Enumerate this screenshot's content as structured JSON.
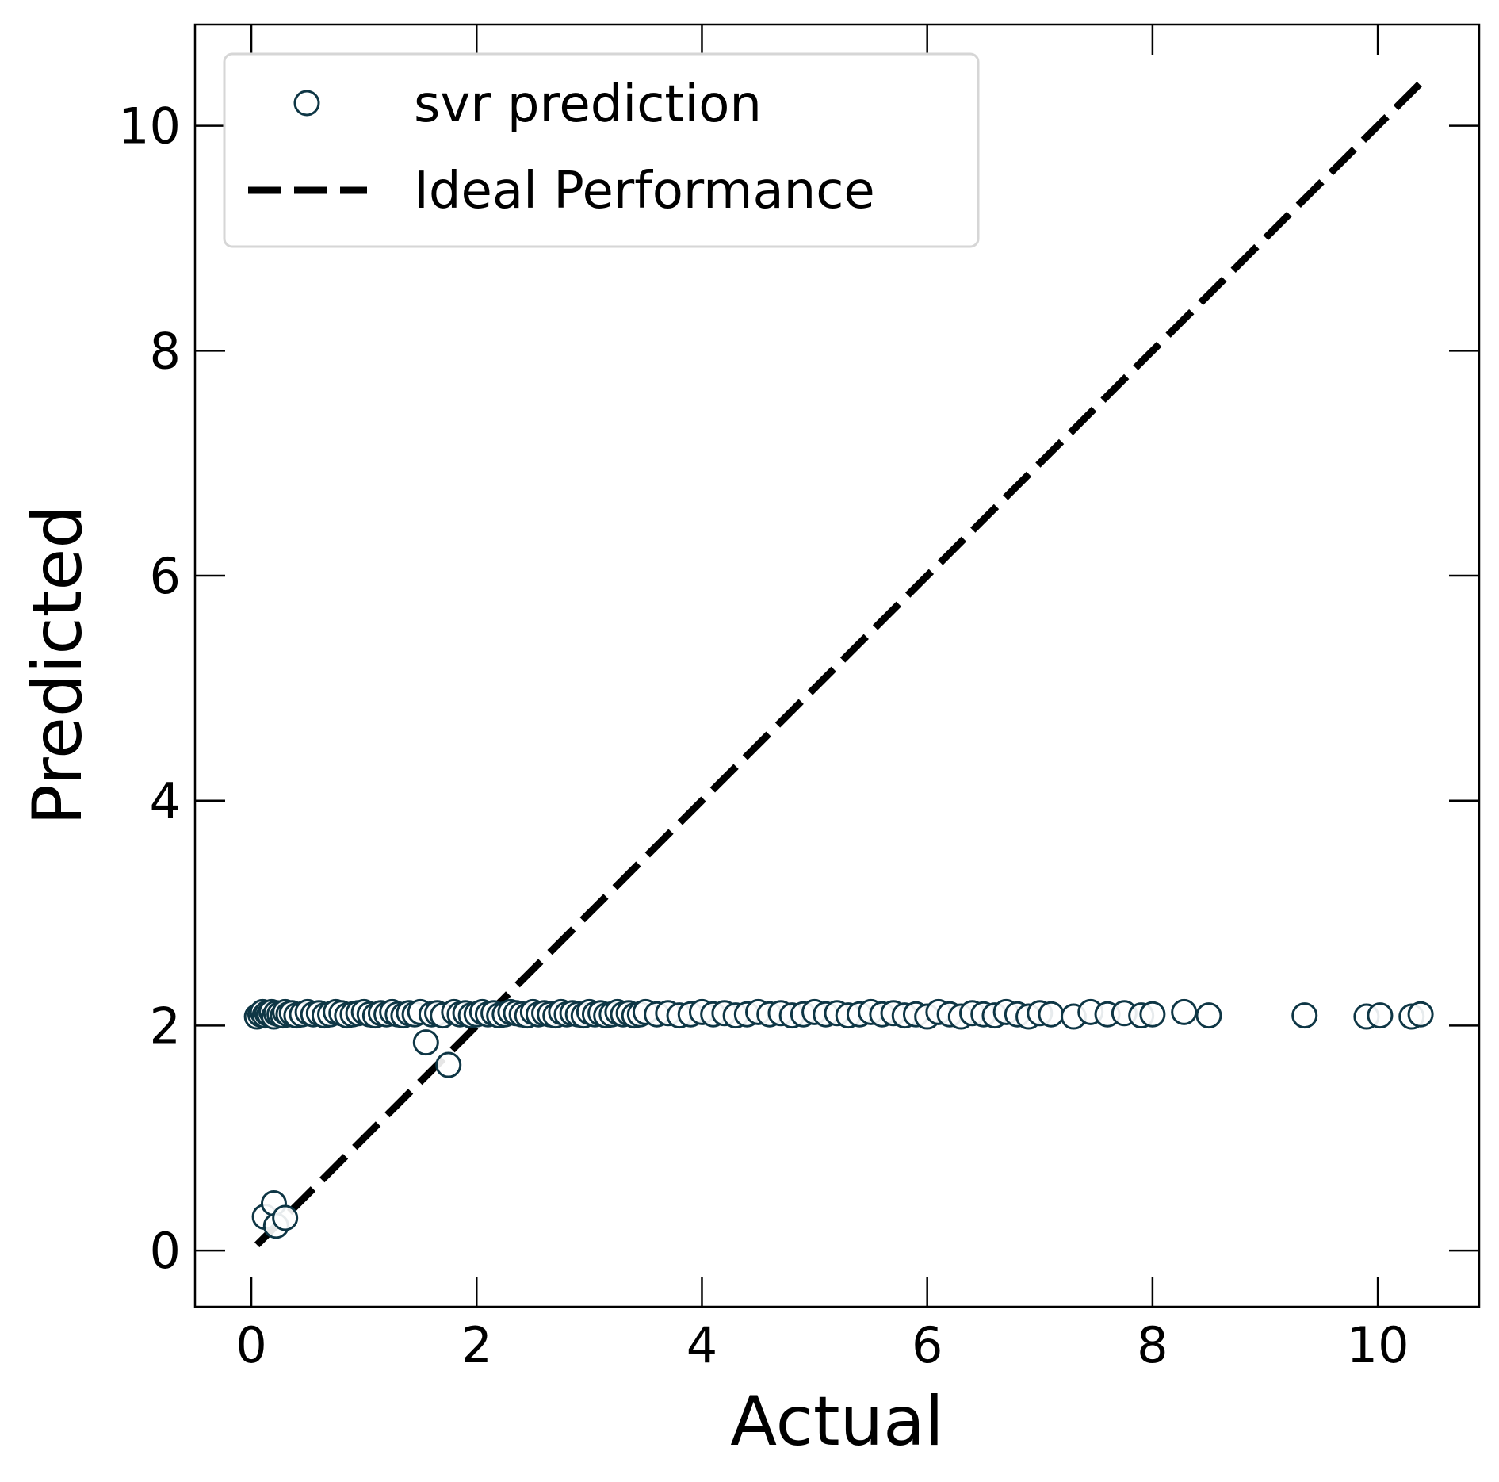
{
  "chart_data": {
    "type": "scatter",
    "xlabel": "Actual",
    "ylabel": "Predicted",
    "xlim": [
      -0.5,
      10.9
    ],
    "ylim": [
      -0.5,
      10.9
    ],
    "xticks": [
      "0",
      "2",
      "4",
      "6",
      "8",
      "10"
    ],
    "yticks": [
      "0",
      "2",
      "4",
      "6",
      "8",
      "10"
    ],
    "grid": false,
    "legend_position": "top-left",
    "colors": {
      "marker_edge": "#0e3645",
      "ideal_line": "#000000"
    },
    "series": [
      {
        "name": "svr prediction",
        "marker": "open-circle",
        "x": [
          0.05,
          0.08,
          0.1,
          0.12,
          0.14,
          0.16,
          0.18,
          0.2,
          0.22,
          0.25,
          0.28,
          0.3,
          0.33,
          0.36,
          0.4,
          0.45,
          0.5,
          0.55,
          0.6,
          0.65,
          0.7,
          0.75,
          0.8,
          0.85,
          0.9,
          0.95,
          1.0,
          1.05,
          1.1,
          1.15,
          1.2,
          1.25,
          1.3,
          1.35,
          1.4,
          1.45,
          1.5,
          1.6,
          1.65,
          1.7,
          1.8,
          1.85,
          1.9,
          1.95,
          2.0,
          2.05,
          2.1,
          2.15,
          2.2,
          2.25,
          2.3,
          2.35,
          2.4,
          2.45,
          2.5,
          2.55,
          2.6,
          2.65,
          2.7,
          2.75,
          2.8,
          2.85,
          2.9,
          2.95,
          3.0,
          3.05,
          3.1,
          3.15,
          3.2,
          3.25,
          3.3,
          3.35,
          3.4,
          3.45,
          3.5,
          3.6,
          3.7,
          3.8,
          3.9,
          4.0,
          4.1,
          4.2,
          4.3,
          4.4,
          4.5,
          4.6,
          4.7,
          4.8,
          4.9,
          5.0,
          5.1,
          5.2,
          5.3,
          5.4,
          5.5,
          5.6,
          5.7,
          5.8,
          5.9,
          6.0,
          6.1,
          6.2,
          6.3,
          6.4,
          6.5,
          6.6,
          6.7,
          6.8,
          6.9,
          7.0,
          7.1,
          7.3,
          7.45,
          7.6,
          7.75,
          7.9,
          8.0,
          8.28,
          8.5,
          9.35,
          9.9,
          10.02,
          10.3,
          10.38,
          0.12,
          0.2,
          0.22,
          0.3,
          1.55,
          1.75
        ],
        "y": [
          2.08,
          2.1,
          2.12,
          2.09,
          2.11,
          2.1,
          2.12,
          2.08,
          2.11,
          2.1,
          2.09,
          2.12,
          2.1,
          2.11,
          2.09,
          2.1,
          2.12,
          2.1,
          2.11,
          2.09,
          2.1,
          2.12,
          2.11,
          2.09,
          2.1,
          2.11,
          2.12,
          2.1,
          2.09,
          2.11,
          2.1,
          2.12,
          2.1,
          2.09,
          2.11,
          2.1,
          2.12,
          2.1,
          2.11,
          2.09,
          2.12,
          2.1,
          2.11,
          2.09,
          2.1,
          2.12,
          2.1,
          2.11,
          2.09,
          2.1,
          2.12,
          2.11,
          2.1,
          2.09,
          2.12,
          2.1,
          2.11,
          2.1,
          2.09,
          2.12,
          2.1,
          2.11,
          2.1,
          2.09,
          2.12,
          2.1,
          2.11,
          2.09,
          2.1,
          2.12,
          2.1,
          2.11,
          2.09,
          2.1,
          2.12,
          2.1,
          2.11,
          2.09,
          2.1,
          2.12,
          2.1,
          2.11,
          2.09,
          2.1,
          2.12,
          2.1,
          2.11,
          2.09,
          2.1,
          2.12,
          2.1,
          2.11,
          2.09,
          2.1,
          2.12,
          2.1,
          2.11,
          2.09,
          2.1,
          2.08,
          2.12,
          2.1,
          2.08,
          2.11,
          2.1,
          2.09,
          2.12,
          2.1,
          2.08,
          2.11,
          2.1,
          2.08,
          2.12,
          2.1,
          2.11,
          2.09,
          2.1,
          2.12,
          2.09,
          2.09,
          2.08,
          2.09,
          2.08,
          2.1,
          0.3,
          0.42,
          0.22,
          0.29,
          1.85,
          1.65
        ]
      },
      {
        "name": "Ideal Performance",
        "style": "dashed-line",
        "x": [
          0.05,
          10.4
        ],
        "y": [
          0.05,
          10.4
        ]
      }
    ]
  }
}
